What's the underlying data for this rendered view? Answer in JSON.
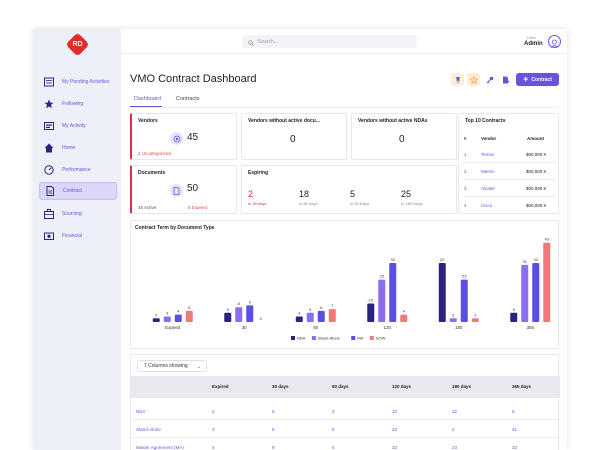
{
  "logo": {
    "text": "RD"
  },
  "sidebar": {
    "items": [
      {
        "label": "My Pending Activities",
        "icon": "list-icon"
      },
      {
        "label": "Following",
        "icon": "star-icon"
      },
      {
        "label": "My Activity",
        "icon": "activity-icon"
      },
      {
        "label": "Home",
        "icon": "home-icon"
      },
      {
        "label": "Performance",
        "icon": "gauge-icon"
      },
      {
        "label": "Contract",
        "icon": "document-icon",
        "active": true
      },
      {
        "label": "Sourcing",
        "icon": "briefcase-icon"
      },
      {
        "label": "Financial",
        "icon": "money-icon"
      }
    ]
  },
  "header": {
    "search_placeholder": "Search...",
    "greeting": "Hello",
    "user": "Admin"
  },
  "page": {
    "title": "VMO Contract Dashboard",
    "add_button": "Contract",
    "tabs": [
      {
        "label": "Dashboard",
        "active": true
      },
      {
        "label": "Contracts",
        "active": false
      }
    ]
  },
  "cards": {
    "vendors": {
      "title": "Vendors",
      "value": "45",
      "note": "2 Uncategorized"
    },
    "no_active_docs": {
      "title": "Vendors without active docu...",
      "value": "0"
    },
    "no_active_ndas": {
      "title": "Vendors without active NDAs",
      "value": "0"
    },
    "documents": {
      "title": "Documents",
      "value": "50",
      "active": "45 Active",
      "expired": "5 Expired"
    },
    "expiring": {
      "title": "Expiring",
      "items": [
        {
          "value": "2",
          "label": "In 30 days"
        },
        {
          "value": "18",
          "label": "In 60 days"
        },
        {
          "value": "5",
          "label": "In 90 Days"
        },
        {
          "value": "25",
          "label": "In 180 Days"
        }
      ]
    },
    "top10": {
      "title": "Top 10 Contracts",
      "headers": [
        "#",
        "Vendor",
        "Amount"
      ],
      "rows": [
        {
          "idx": "1",
          "vendor": "Temes",
          "amount": "$00,000 K"
        },
        {
          "idx": "2",
          "vendor": "Meeris",
          "amount": "$00,000 K"
        },
        {
          "idx": "3",
          "vendor": "Alcatel",
          "amount": "$00,000 K"
        },
        {
          "idx": "4",
          "vendor": "Cisco",
          "amount": "$00,000 K"
        }
      ]
    }
  },
  "chart_data": {
    "type": "bar",
    "title": "Contract Term by Document Type",
    "categories": [
      "Expired",
      "30",
      "60",
      "120",
      "180",
      "365"
    ],
    "series": [
      {
        "name": "NDA",
        "color": "#2b2380",
        "values": [
          2,
          5,
          3,
          10,
          32,
          5
        ]
      },
      {
        "name": "Stand-Alone",
        "color": "#8a6df0",
        "values": [
          3,
          8,
          5,
          23,
          2,
          31
        ]
      },
      {
        "name": "MA",
        "color": "#5b4ee6",
        "values": [
          4,
          9,
          6,
          32,
          23,
          32
        ]
      },
      {
        "name": "SOW",
        "color": "#f07878",
        "values": [
          6,
          0,
          7,
          4,
          2,
          43
        ]
      }
    ],
    "ylim": [
      0,
      45
    ],
    "legend": "bottom-center",
    "grid": false
  },
  "table": {
    "columns_control": "7 Columns showing",
    "headers": [
      "",
      "Expired",
      "30 days",
      "60 days",
      "120 days",
      "180 days",
      "365 days"
    ],
    "rows": [
      {
        "label": "NDA",
        "values": [
          "2",
          "5",
          "3",
          "10",
          "32",
          "5"
        ]
      },
      {
        "label": "Stand-Alone",
        "values": [
          "3",
          "8",
          "5",
          "23",
          "2",
          "31"
        ]
      },
      {
        "label": "Master Agreement (MA)",
        "values": [
          "4",
          "9",
          "6",
          "32",
          "23",
          "32"
        ]
      }
    ]
  },
  "colors": {
    "accent": "#6952e0",
    "alert": "#d8304a",
    "sidebar_bg": "#eef0f7"
  }
}
